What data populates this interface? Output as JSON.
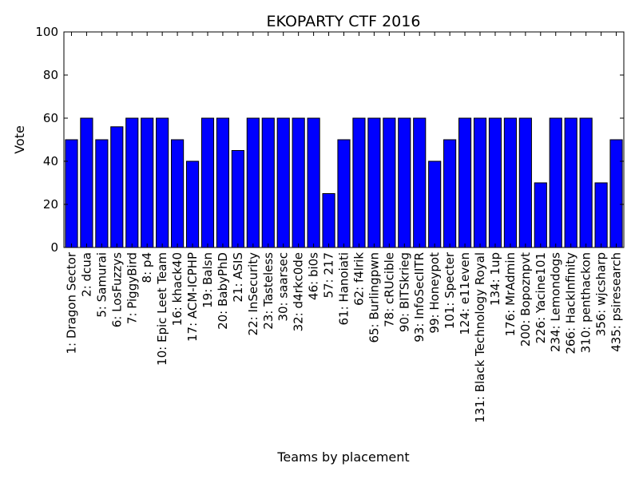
{
  "chart_data": {
    "type": "bar",
    "title": "EKOPARTY CTF 2016",
    "xlabel": "Teams by placement",
    "ylabel": "Vote",
    "ylim": [
      0,
      100
    ],
    "yticks": [
      0,
      20,
      40,
      60,
      80,
      100
    ],
    "grid": false,
    "bar_color": "#0000ff",
    "categories": [
      "1: Dragon Sector",
      "2: dcua",
      "5: Samurai",
      "6: LosFuzzys",
      "7: PiggyBird",
      "8: p4",
      "10: Epic Leet Team",
      "16: khack40",
      "17: ACM-ICPHP",
      "19: Balsn",
      "20: BabyPhD",
      "21: ASIS",
      "22: InSecurity",
      "23: Tasteless",
      "30: saarsec",
      "32: d4rkc0de",
      "46: bi0s",
      "57: 217",
      "61: Hanoiati",
      "62: f4lrik",
      "65: Burlingpwn",
      "78: cRUcible",
      "90: BITSkrieg",
      "93: InfoSecIITR",
      "99: Honeypot",
      "101: Specter",
      "124: e11even",
      "131: Black Technology Royal",
      "134: 1up",
      "176: MrAdmin",
      "200: Bopoznpvt",
      "226: Yacine101",
      "234: Lemondogs",
      "266: HackInfinity",
      "310: penthackon",
      "356: wjcsharp",
      "435: psiresearch"
    ],
    "values": [
      50,
      60,
      50,
      56,
      60,
      60,
      60,
      50,
      40,
      60,
      60,
      45,
      60,
      60,
      60,
      60,
      60,
      25,
      50,
      60,
      60,
      60,
      60,
      60,
      40,
      50,
      60,
      60,
      60,
      60,
      60,
      30,
      60,
      60,
      60,
      30,
      50
    ]
  }
}
